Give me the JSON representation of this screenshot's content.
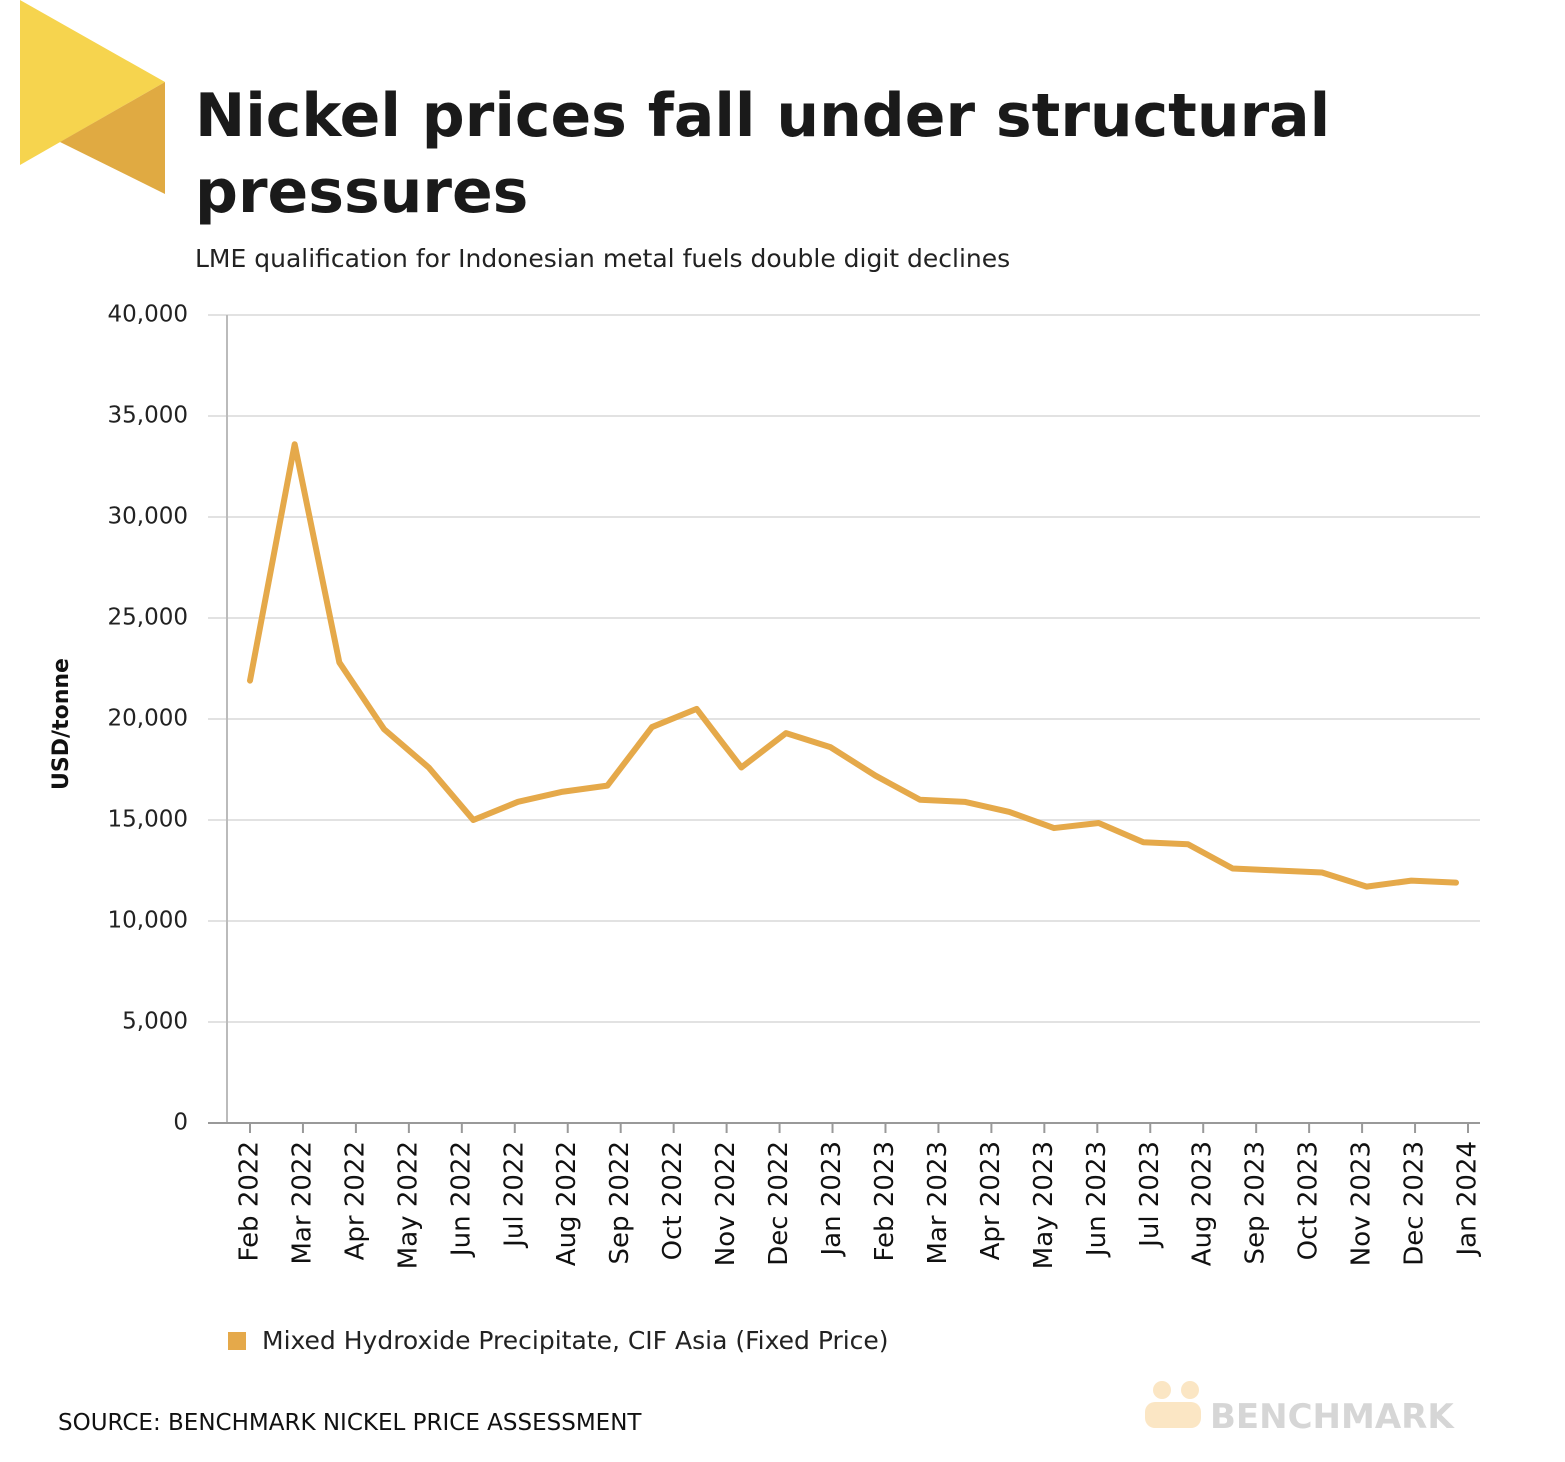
{
  "chart_data": {
    "type": "line",
    "title": "Nickel prices fall under structural pressures",
    "subtitle": "LME qualification for Indonesian metal fuels double digit declines",
    "y_label": "USD/tonne",
    "source": "SOURCE: BENCHMARK NICKEL PRICE ASSESSMENT",
    "brand": "BENCHMARK",
    "xticks": [
      "Feb 2022",
      "Mar 2022",
      "Apr 2022",
      "May 2022",
      "Jun 2022",
      "Jul 2022",
      "Aug 2022",
      "Sep 2022",
      "Oct 2022",
      "Nov 2022",
      "Dec 2022",
      "Jan 2023",
      "Feb 2023",
      "Mar 2023",
      "Apr 2023",
      "May 2023",
      "Jun 2023",
      "Jul 2023",
      "Aug 2023",
      "Sep 2023",
      "Oct 2023",
      "Nov 2023",
      "Dec 2023",
      "Jan 2024"
    ],
    "series": [
      {
        "name": "Mixed Hydroxide Precipitate, CIF Asia (Fixed Price)",
        "color": "#e5a94a",
        "values": [
          21900,
          33600,
          22800,
          19500,
          17600,
          15000,
          15900,
          16400,
          16700,
          19600,
          20500,
          17600,
          19300,
          18600,
          17200,
          16000,
          15900,
          15400,
          14600,
          14850,
          13900,
          13800,
          12600,
          12500,
          12400,
          11700,
          12000,
          11900
        ]
      }
    ],
    "ylim": [
      0,
      40000
    ],
    "yticks": [
      0,
      {
        "value": 5000,
        "label": "5,000"
      },
      {
        "value": 10000,
        "label": "10,000"
      },
      {
        "value": 15000,
        "label": "15,000"
      },
      {
        "value": 20000,
        "label": "20,000"
      },
      {
        "value": 25000,
        "label": "25,000"
      },
      {
        "value": 30000,
        "label": "30,000"
      },
      {
        "value": 35000,
        "label": "35,000"
      },
      {
        "value": 40000,
        "label": "40,000"
      }
    ],
    "grid": true
  }
}
